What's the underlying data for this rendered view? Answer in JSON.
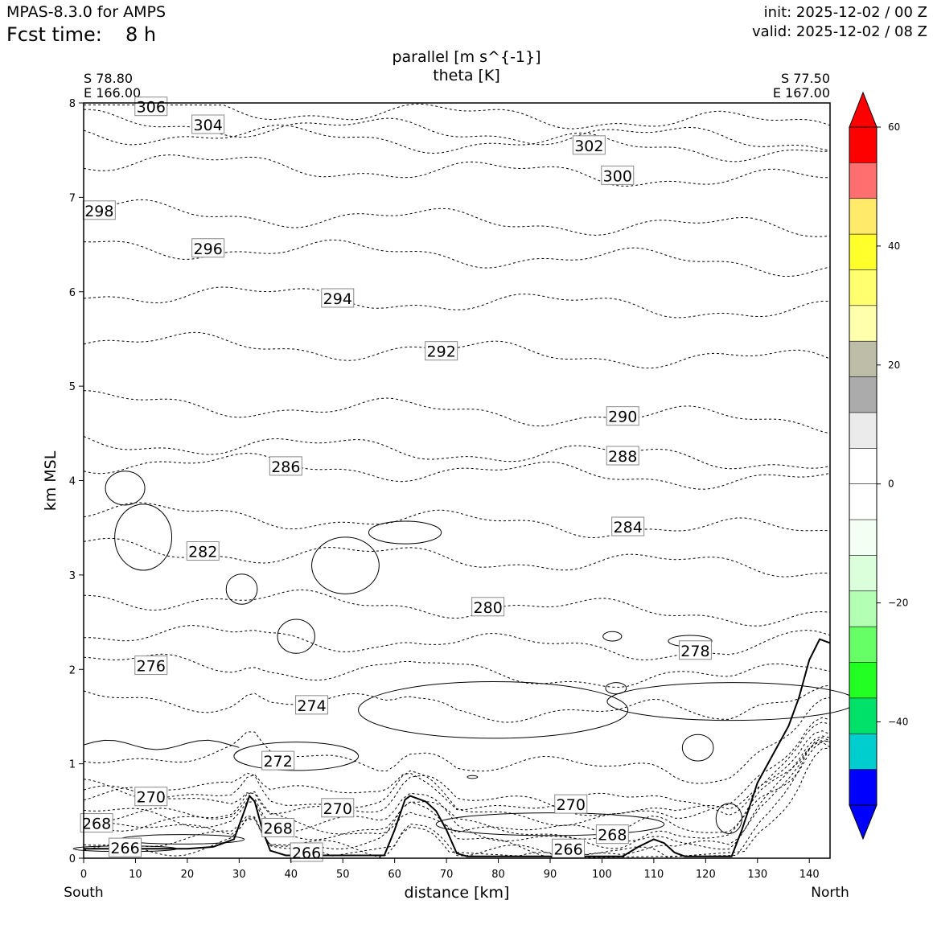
{
  "header": {
    "model": "MPAS-8.3.0 for AMPS",
    "fcst_label": "Fcst time:",
    "fcst_value": "8 h",
    "init": "init: 2025-12-02 / 00 Z",
    "valid": "valid: 2025-12-02 / 08 Z"
  },
  "chart_data": {
    "type": "contour-cross-section",
    "title_line1": "parallel [m s^{-1}]",
    "title_line2": "theta [K]",
    "xlabel": "distance [km]",
    "ylabel": "km MSL",
    "xlim": [
      0,
      144
    ],
    "ylim": [
      0,
      8
    ],
    "xticks": [
      0,
      10,
      20,
      30,
      40,
      50,
      60,
      70,
      80,
      90,
      100,
      110,
      120,
      130,
      140
    ],
    "yticks": [
      0,
      1,
      2,
      3,
      4,
      5,
      6,
      7,
      8
    ],
    "left_end": {
      "lat": "S 78.80",
      "lon": "E 166.00",
      "dir": "South"
    },
    "right_end": {
      "lat": "S 77.50",
      "lon": "E 167.00",
      "dir": "North"
    },
    "theta_contours": [
      {
        "value": "306",
        "label_x": 13,
        "label_y": 7.96
      },
      {
        "value": "304",
        "label_x": 24,
        "label_y": 7.77
      },
      {
        "value": "302",
        "label_x": 97.5,
        "label_y": 7.55
      },
      {
        "value": "300",
        "label_x": 103,
        "label_y": 7.23
      },
      {
        "value": "298",
        "label_x": 3,
        "label_y": 6.86
      },
      {
        "value": "296",
        "label_x": 24,
        "label_y": 6.46
      },
      {
        "value": "294",
        "label_x": 49,
        "label_y": 5.93
      },
      {
        "value": "292",
        "label_x": 69,
        "label_y": 5.37
      },
      {
        "value": "290",
        "label_x": 104,
        "label_y": 4.68
      },
      {
        "value": "288",
        "label_x": 104,
        "label_y": 4.26
      },
      {
        "value": "286",
        "label_x": 39,
        "label_y": 4.15
      },
      {
        "value": "284",
        "label_x": 105,
        "label_y": 3.51
      },
      {
        "value": "282",
        "label_x": 23,
        "label_y": 3.25
      },
      {
        "value": "280",
        "label_x": 78,
        "label_y": 2.66
      },
      {
        "value": "278",
        "label_x": 118,
        "label_y": 2.2
      },
      {
        "value": "276",
        "label_x": 13,
        "label_y": 2.04
      },
      {
        "value": "274",
        "label_x": 44,
        "label_y": 1.62
      },
      {
        "value": "272",
        "label_x": 37.5,
        "label_y": 1.03
      },
      {
        "value": "270",
        "label_x": 13,
        "label_y": 0.65
      },
      {
        "value": "270",
        "label_x": 49,
        "label_y": 0.53
      },
      {
        "value": "270",
        "label_x": 94,
        "label_y": 0.57
      },
      {
        "value": "268",
        "label_x": 2.5,
        "label_y": 0.37
      },
      {
        "value": "268",
        "label_x": 37.5,
        "label_y": 0.32
      },
      {
        "value": "268",
        "label_x": 102,
        "label_y": 0.25
      },
      {
        "value": "266",
        "label_x": 8,
        "label_y": 0.11
      },
      {
        "value": "266",
        "label_x": 43,
        "label_y": 0.06
      },
      {
        "value": "266",
        "label_x": 93.5,
        "label_y": 0.1
      }
    ],
    "terrain_km": [
      [
        0,
        0.1
      ],
      [
        20,
        0.1
      ],
      [
        25,
        0.12
      ],
      [
        29,
        0.2
      ],
      [
        31,
        0.5
      ],
      [
        32,
        0.66
      ],
      [
        33,
        0.6
      ],
      [
        34.5,
        0.3
      ],
      [
        36,
        0.08
      ],
      [
        39,
        0.03
      ],
      [
        58,
        0.03
      ],
      [
        60,
        0.3
      ],
      [
        62,
        0.62
      ],
      [
        63,
        0.66
      ],
      [
        66,
        0.6
      ],
      [
        68,
        0.5
      ],
      [
        70,
        0.3
      ],
      [
        72,
        0.05
      ],
      [
        74,
        0.02
      ],
      [
        104,
        0.02
      ],
      [
        107,
        0.12
      ],
      [
        110,
        0.2
      ],
      [
        112,
        0.16
      ],
      [
        114,
        0.06
      ],
      [
        116,
        0.02
      ],
      [
        125,
        0.02
      ],
      [
        127,
        0.3
      ],
      [
        130,
        0.8
      ],
      [
        133,
        1.1
      ],
      [
        136,
        1.4
      ],
      [
        138,
        1.7
      ],
      [
        140,
        2.1
      ],
      [
        142,
        2.32
      ],
      [
        144,
        2.28
      ]
    ],
    "colorbar": {
      "ticks": [
        "60",
        "40",
        "20",
        "0",
        "−20",
        "−40"
      ],
      "tick_values": [
        60,
        40,
        20,
        0,
        -20,
        -40
      ],
      "range": [
        -54,
        60
      ],
      "extend": "both",
      "colors_top_to_bottom": [
        "#ff0000",
        "#ff6f6f",
        "#ffea6a",
        "#ffff2c",
        "#ffff70",
        "#ffffac",
        "#bebea8",
        "#ababab",
        "#ebebeb",
        "#ffffff",
        "#ffffff",
        "#f2fff2",
        "#dbffdb",
        "#b3ffb3",
        "#66ff66",
        "#22ff22",
        "#00e16a",
        "#00cdcd",
        "#0000ff"
      ],
      "over_color": "#ff0000",
      "under_color": "#0000ff"
    }
  }
}
